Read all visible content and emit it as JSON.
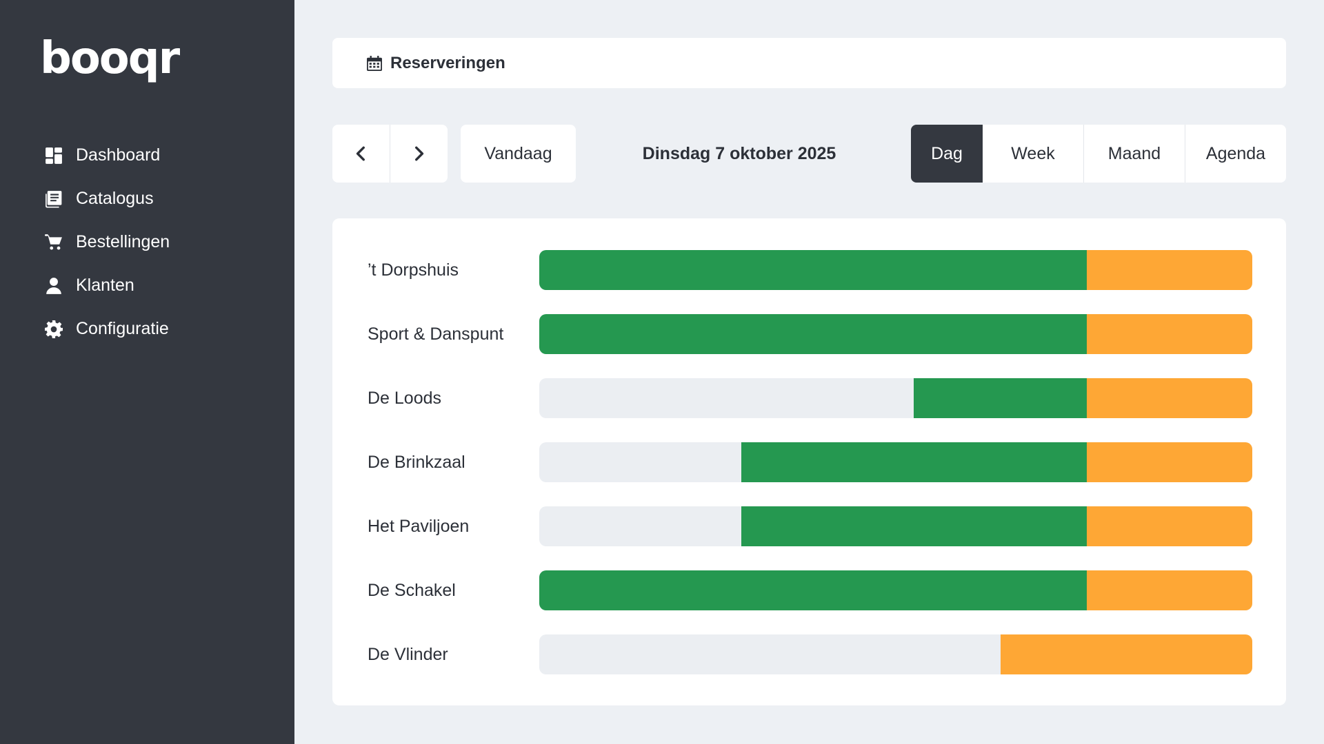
{
  "app": {
    "logo_text": "booqr"
  },
  "sidebar": {
    "items": [
      {
        "label": "Dashboard",
        "icon": "dashboard-icon"
      },
      {
        "label": "Catalogus",
        "icon": "catalog-icon"
      },
      {
        "label": "Bestellingen",
        "icon": "cart-icon"
      },
      {
        "label": "Klanten",
        "icon": "user-icon"
      },
      {
        "label": "Configuratie",
        "icon": "gear-icon"
      }
    ]
  },
  "header": {
    "icon": "calendar-icon",
    "title": "Reserveringen"
  },
  "toolbar": {
    "prev_icon": "chevron-left-icon",
    "next_icon": "chevron-right-icon",
    "today_label": "Vandaag",
    "date_label": "Dinsdag 7 oktober 2025",
    "views": [
      {
        "label": "Dag",
        "active": true
      },
      {
        "label": "Week",
        "active": false
      },
      {
        "label": "Maand",
        "active": false
      },
      {
        "label": "Agenda",
        "active": false
      }
    ]
  },
  "colors": {
    "green": "#259850",
    "orange": "#fea735",
    "sidebar": "#343840",
    "track": "#ebeef2"
  },
  "reservations": {
    "rows": [
      {
        "name": "’t Dorpshuis",
        "segments": [
          {
            "color": "green",
            "start": 0.0,
            "end": 0.768
          },
          {
            "color": "orange",
            "start": 0.768,
            "end": 1.0
          }
        ]
      },
      {
        "name": "Sport & Danspunt",
        "segments": [
          {
            "color": "green",
            "start": 0.0,
            "end": 0.768
          },
          {
            "color": "orange",
            "start": 0.768,
            "end": 1.0
          }
        ]
      },
      {
        "name": "De Loods",
        "segments": [
          {
            "color": "green",
            "start": 0.525,
            "end": 0.768
          },
          {
            "color": "orange",
            "start": 0.768,
            "end": 1.0
          }
        ]
      },
      {
        "name": "De Brinkzaal",
        "segments": [
          {
            "color": "green",
            "start": 0.283,
            "end": 0.768
          },
          {
            "color": "orange",
            "start": 0.768,
            "end": 1.0
          }
        ]
      },
      {
        "name": "Het Paviljoen",
        "segments": [
          {
            "color": "green",
            "start": 0.283,
            "end": 0.768
          },
          {
            "color": "orange",
            "start": 0.768,
            "end": 1.0
          }
        ]
      },
      {
        "name": "De Schakel",
        "segments": [
          {
            "color": "green",
            "start": 0.0,
            "end": 0.768
          },
          {
            "color": "orange",
            "start": 0.768,
            "end": 1.0
          }
        ]
      },
      {
        "name": "De Vlinder",
        "segments": [
          {
            "color": "orange",
            "start": 0.647,
            "end": 1.0
          }
        ]
      }
    ]
  }
}
